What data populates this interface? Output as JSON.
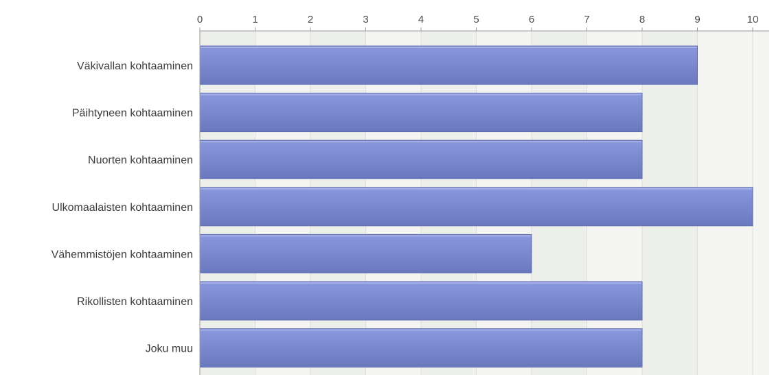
{
  "chart_data": {
    "type": "bar",
    "orientation": "horizontal",
    "categories": [
      "Väkivallan kohtaaminen",
      "Päihtyneen kohtaaminen",
      "Nuorten kohtaaminen",
      "Ulkomaalaisten kohtaaminen",
      "Vähemmistöjen kohtaaminen",
      "Rikollisten kohtaaminen",
      "Joku muu"
    ],
    "values": [
      9,
      8,
      8,
      10,
      6,
      8,
      8
    ],
    "xlim": [
      0,
      10.2
    ],
    "ticks": [
      "0",
      "1",
      "2",
      "3",
      "4",
      "5",
      "6",
      "7",
      "8",
      "9",
      "10"
    ],
    "axis_position": "top",
    "grid": true,
    "title": "",
    "xlabel": "",
    "ylabel": "",
    "colors": {
      "bar_top": "#8a98de",
      "bar_bottom": "#6a78bd",
      "bar_border": "#5d6bb0",
      "plot_bg": "#f4f5f2",
      "alt_band": "#e8ebe6",
      "grid": "#dcdedb",
      "axis": "#999999"
    }
  }
}
